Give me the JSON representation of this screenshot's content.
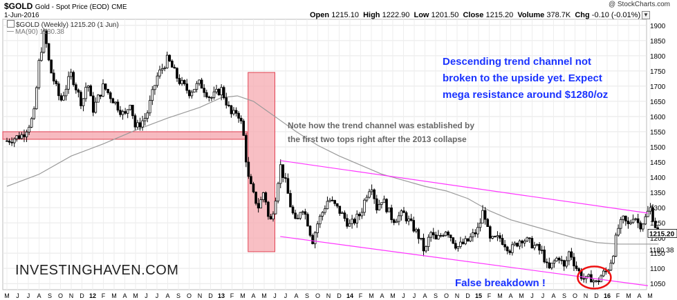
{
  "header": {
    "ticker": "$GOLD",
    "description": "Gold - Spot Price (EOD)",
    "exchange": "CME",
    "date": "1-Jun-2016",
    "copyright": "@ StockCharts.com"
  },
  "quote": {
    "open_label": "Open",
    "open": "1215.10",
    "high_label": "High",
    "high": "1222.90",
    "low_label": "Low",
    "low": "1201.50",
    "close_label": "Close",
    "close": "1215.20",
    "volume_label": "Volume",
    "volume": "378.7K",
    "chg_label": "Chg",
    "chg": "-0.10 (-0.01%)"
  },
  "legend": {
    "gold": "$GOLD (Weekly) 1215.20 (1 Jun)",
    "ma": "MA(90) 1180.38"
  },
  "annotations": {
    "channel_note": "Descending trend channel not\nbroken to the upside yet. Expect\nmega resistance around $1280/oz",
    "trend_note": "Note how the trend channel was established by\nthe first two tops right after the 2013 collapse",
    "false_breakdown": "False breakdown !"
  },
  "watermark": "INVESTINGHAVEN.COM",
  "colors": {
    "candle": "#000000",
    "ma_line": "#999999",
    "channel": "#ff33ff",
    "highlight_fill": "#f5a9b0",
    "highlight_stroke": "#e04050",
    "circle": "#ee1111",
    "annotation_blue": "#1a33ff"
  },
  "chart_data": {
    "type": "candlestick",
    "series_name": "$GOLD (Weekly)",
    "ylim": [
      1030,
      1920
    ],
    "yticks": [
      1050,
      1100,
      1150,
      1200,
      1250,
      1300,
      1350,
      1400,
      1450,
      1500,
      1550,
      1600,
      1650,
      1700,
      1750,
      1800,
      1850,
      1900
    ],
    "last_price": "1215.20",
    "ma_value": "1180.38",
    "x_months": [
      "M",
      "J",
      "J",
      "A",
      "S",
      "O",
      "N",
      "D",
      "12",
      "F",
      "M",
      "A",
      "M",
      "J",
      "J",
      "A",
      "S",
      "O",
      "N",
      "D",
      "13",
      "F",
      "M",
      "A",
      "M",
      "J",
      "J",
      "A",
      "S",
      "O",
      "N",
      "D",
      "14",
      "F",
      "M",
      "A",
      "M",
      "J",
      "J",
      "A",
      "S",
      "O",
      "N",
      "D",
      "15",
      "F",
      "M",
      "A",
      "M",
      "J",
      "J",
      "A",
      "S",
      "O",
      "N",
      "D",
      "16",
      "F",
      "M",
      "A",
      "M"
    ],
    "price_path": [
      [
        0,
        1520
      ],
      [
        1.5,
        1540
      ],
      [
        2.5,
        1600
      ],
      [
        3,
        1780
      ],
      [
        3.5,
        1880
      ],
      [
        4,
        1760
      ],
      [
        5,
        1650
      ],
      [
        6,
        1740
      ],
      [
        7,
        1640
      ],
      [
        7.5,
        1720
      ],
      [
        8,
        1620
      ],
      [
        9,
        1700
      ],
      [
        10,
        1650
      ],
      [
        11,
        1600
      ],
      [
        11.5,
        1650
      ],
      [
        12,
        1560
      ],
      [
        13,
        1600
      ],
      [
        14,
        1730
      ],
      [
        15,
        1790
      ],
      [
        16,
        1720
      ],
      [
        17,
        1680
      ],
      [
        18,
        1710
      ],
      [
        19,
        1660
      ],
      [
        20,
        1690
      ],
      [
        21,
        1600
      ],
      [
        21.5,
        1620
      ],
      [
        22,
        1560
      ],
      [
        22.5,
        1400
      ],
      [
        23,
        1340
      ],
      [
        23.5,
        1300
      ],
      [
        24,
        1360
      ],
      [
        24.5,
        1240
      ],
      [
        25,
        1320
      ],
      [
        25.5,
        1440
      ],
      [
        26,
        1380
      ],
      [
        26.5,
        1300
      ],
      [
        27,
        1240
      ],
      [
        27.5,
        1310
      ],
      [
        28,
        1260
      ],
      [
        28.5,
        1190
      ],
      [
        29,
        1250
      ],
      [
        30,
        1330
      ],
      [
        31,
        1290
      ],
      [
        32,
        1240
      ],
      [
        33,
        1280
      ],
      [
        33.5,
        1340
      ],
      [
        34,
        1380
      ],
      [
        34.5,
        1300
      ],
      [
        35,
        1330
      ],
      [
        36,
        1260
      ],
      [
        37,
        1280
      ],
      [
        38,
        1230
      ],
      [
        38.5,
        1200
      ],
      [
        39,
        1150
      ],
      [
        39.5,
        1220
      ],
      [
        40,
        1190
      ],
      [
        41,
        1230
      ],
      [
        42,
        1170
      ],
      [
        43,
        1190
      ],
      [
        44,
        1230
      ],
      [
        44.5,
        1300
      ],
      [
        45,
        1190
      ],
      [
        46,
        1200
      ],
      [
        47,
        1160
      ],
      [
        48,
        1200
      ],
      [
        49,
        1180
      ],
      [
        50,
        1150
      ],
      [
        50.5,
        1090
      ],
      [
        51,
        1120
      ],
      [
        51.5,
        1140
      ],
      [
        52,
        1100
      ],
      [
        52.5,
        1160
      ],
      [
        53,
        1110
      ],
      [
        53.5,
        1080
      ],
      [
        54,
        1060
      ],
      [
        54.5,
        1070
      ],
      [
        55,
        1050
      ],
      [
        55.5,
        1080
      ],
      [
        56,
        1090
      ],
      [
        56.5,
        1140
      ],
      [
        57,
        1230
      ],
      [
        57.5,
        1260
      ],
      [
        58,
        1240
      ],
      [
        58.5,
        1280
      ],
      [
        59,
        1240
      ],
      [
        59.5,
        1260
      ],
      [
        60,
        1300
      ],
      [
        60.5,
        1240
      ],
      [
        60.8,
        1215
      ]
    ],
    "ma_path": [
      [
        0,
        1370
      ],
      [
        3,
        1410
      ],
      [
        6,
        1470
      ],
      [
        9,
        1510
      ],
      [
        12,
        1555
      ],
      [
        15,
        1595
      ],
      [
        18,
        1630
      ],
      [
        20,
        1662
      ],
      [
        21.5,
        1668
      ],
      [
        23,
        1650
      ],
      [
        25,
        1600
      ],
      [
        27,
        1550
      ],
      [
        29,
        1505
      ],
      [
        31,
        1470
      ],
      [
        33,
        1440
      ],
      [
        35,
        1410
      ],
      [
        37,
        1390
      ],
      [
        39,
        1370
      ],
      [
        41,
        1355
      ],
      [
        43,
        1330
      ],
      [
        45,
        1290
      ],
      [
        47,
        1260
      ],
      [
        49,
        1240
      ],
      [
        51,
        1220
      ],
      [
        53,
        1200
      ],
      [
        55,
        1185
      ],
      [
        57,
        1180
      ],
      [
        59,
        1180
      ],
      [
        60.8,
        1180
      ]
    ]
  }
}
